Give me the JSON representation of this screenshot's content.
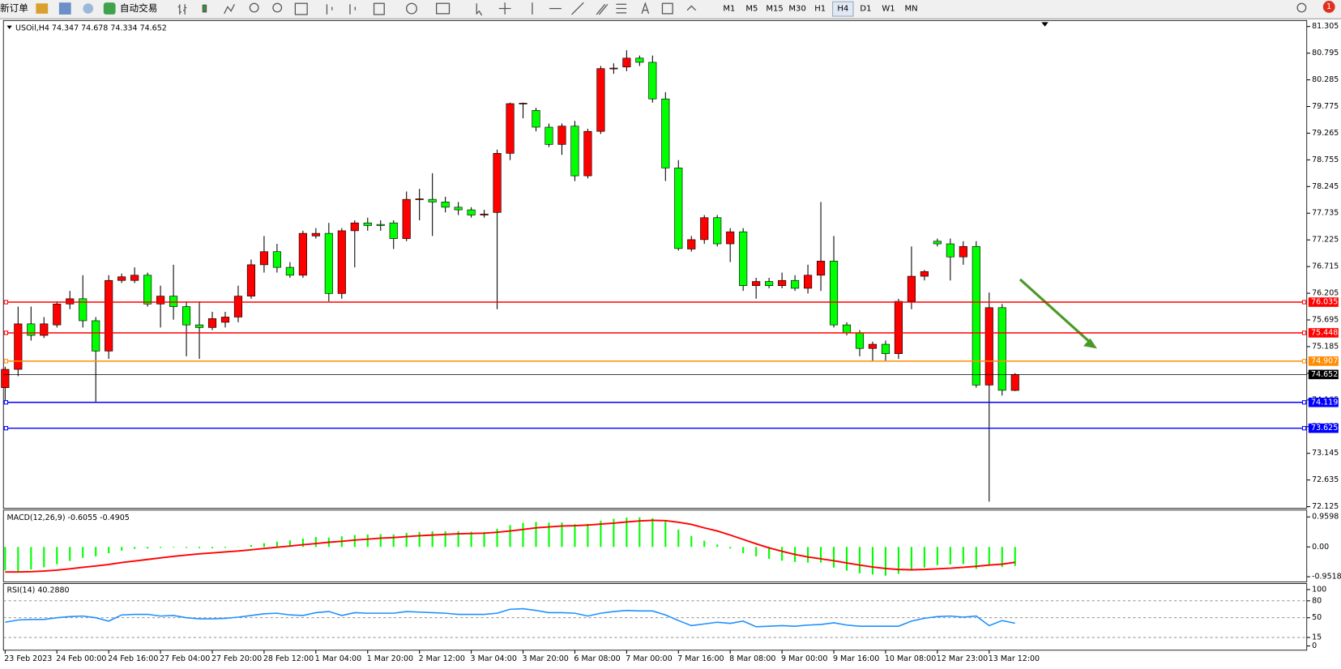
{
  "toolbar": {
    "new_order": "新订单",
    "auto_trading": "自动交易",
    "timeframes": [
      "M1",
      "M5",
      "M15",
      "M30",
      "H1",
      "H4",
      "D1",
      "W1",
      "MN"
    ],
    "badge": "1"
  },
  "chart_data": [
    {
      "type": "candlestick",
      "title": "USOil,H4 74.347 74.678 74.334 74.652",
      "categories": [
        "23 Feb 2023",
        null,
        null,
        null,
        "24 Feb 00:00",
        null,
        null,
        null,
        "24 Feb 16:00",
        null,
        null,
        null,
        "27 Feb 04:00",
        null,
        null,
        null,
        "27 Feb 20:00",
        null,
        null,
        null,
        "28 Feb 12:00",
        null,
        null,
        null,
        "1 Mar 04:00",
        null,
        null,
        null,
        "1 Mar 20:00",
        null,
        null,
        null,
        "2 Mar 12:00",
        null,
        null,
        null,
        "3 Mar 04:00",
        null,
        null,
        null,
        "3 Mar 20:00",
        null,
        null,
        null,
        "6 Mar 08:00",
        null,
        null,
        null,
        "7 Mar 00:00",
        null,
        null,
        null,
        "7 Mar 16:00",
        null,
        null,
        null,
        "8 Mar 08:00",
        null,
        null,
        null,
        "9 Mar 00:00",
        null,
        null,
        null,
        "9 Mar 16:00",
        null,
        null,
        null,
        "10 Mar 08:00",
        null,
        null,
        null,
        "12 Mar 23:00",
        null,
        null,
        null,
        "13 Mar 12:00",
        null,
        null
      ],
      "open": [
        74.4,
        74.75,
        75.62,
        75.4,
        75.6,
        76.0,
        76.1,
        75.68,
        75.1,
        76.45,
        76.45,
        76.55,
        76.0,
        76.15,
        75.95,
        75.6,
        75.55,
        75.65,
        75.75,
        76.15,
        76.75,
        77.0,
        76.7,
        76.55,
        77.3,
        77.35,
        76.2,
        77.4,
        77.55,
        77.52,
        77.55,
        77.25,
        78.0,
        78.0,
        77.95,
        77.85,
        77.8,
        77.7,
        77.75,
        78.88,
        79.83,
        79.7,
        79.38,
        79.05,
        79.4,
        78.45,
        79.3,
        80.5,
        80.53,
        80.7,
        80.62,
        79.92,
        78.6,
        77.05,
        77.23,
        77.65,
        77.15,
        77.38,
        76.35,
        76.43,
        76.35,
        76.45,
        76.3,
        76.55,
        76.82,
        75.6,
        75.45,
        75.15,
        75.23,
        75.05,
        76.05,
        76.53,
        77.2,
        77.15,
        76.9,
        77.1,
        74.45,
        75.93,
        74.347
      ],
      "high": [
        74.8,
        75.95,
        75.95,
        75.75,
        76.05,
        76.25,
        76.55,
        75.75,
        76.55,
        76.58,
        76.7,
        76.6,
        76.35,
        76.75,
        76.05,
        76.05,
        75.85,
        75.85,
        76.35,
        76.85,
        77.3,
        77.15,
        76.8,
        77.4,
        77.45,
        77.55,
        77.45,
        77.6,
        77.65,
        77.6,
        77.6,
        78.15,
        78.2,
        78.5,
        78.05,
        77.95,
        77.85,
        77.8,
        78.95,
        79.85,
        79.85,
        79.75,
        79.45,
        79.45,
        79.5,
        79.35,
        80.55,
        80.6,
        80.85,
        80.75,
        80.75,
        80.05,
        78.75,
        77.3,
        77.7,
        77.7,
        77.45,
        77.45,
        76.5,
        76.5,
        76.6,
        76.55,
        76.75,
        77.95,
        77.3,
        75.65,
        75.5,
        75.28,
        75.3,
        76.1,
        77.1,
        76.65,
        77.25,
        77.25,
        77.2,
        77.2,
        76.22,
        76.0,
        74.678
      ],
      "low": [
        74.1,
        74.62,
        75.3,
        75.35,
        75.55,
        75.9,
        75.55,
        74.12,
        74.95,
        76.4,
        76.4,
        75.95,
        75.55,
        75.7,
        75.0,
        74.95,
        75.5,
        75.55,
        75.65,
        76.1,
        76.6,
        76.6,
        76.5,
        76.5,
        77.25,
        76.05,
        76.1,
        76.7,
        77.4,
        77.4,
        77.05,
        77.2,
        77.6,
        77.3,
        77.75,
        77.7,
        77.65,
        77.65,
        75.9,
        78.75,
        79.55,
        79.3,
        79.0,
        78.85,
        78.35,
        78.4,
        79.25,
        80.4,
        80.45,
        80.55,
        79.85,
        78.35,
        77.02,
        77.0,
        77.15,
        77.1,
        76.8,
        76.25,
        76.1,
        76.3,
        76.3,
        76.25,
        76.2,
        76.25,
        75.55,
        75.4,
        75.0,
        74.9,
        74.9,
        74.95,
        75.9,
        76.45,
        77.1,
        76.45,
        76.75,
        74.4,
        72.22,
        74.25,
        74.334
      ],
      "close": [
        74.75,
        75.62,
        75.4,
        75.62,
        76.0,
        76.1,
        75.68,
        75.1,
        76.45,
        76.52,
        76.55,
        76.0,
        76.15,
        75.95,
        75.6,
        75.55,
        75.72,
        75.75,
        76.15,
        76.75,
        77.0,
        76.7,
        76.55,
        77.35,
        77.35,
        76.2,
        77.4,
        77.55,
        77.5,
        77.5,
        77.25,
        78.0,
        78.01,
        77.95,
        77.85,
        77.8,
        77.7,
        77.72,
        78.88,
        79.83,
        79.84,
        79.38,
        79.05,
        79.4,
        78.45,
        79.3,
        80.5,
        80.51,
        80.7,
        80.62,
        79.92,
        78.6,
        77.06,
        77.23,
        77.65,
        77.15,
        77.38,
        76.35,
        76.43,
        76.35,
        76.45,
        76.3,
        76.55,
        76.82,
        75.6,
        75.45,
        75.15,
        75.23,
        75.05,
        76.05,
        76.53,
        76.62,
        77.15,
        76.9,
        77.1,
        74.45,
        75.93,
        74.35,
        74.652
      ],
      "up_color": "#ff0000",
      "down_color": "#00ff00",
      "ylim": [
        72.125,
        81.305
      ],
      "yticks": [
        81.305,
        80.795,
        80.285,
        79.775,
        79.265,
        78.755,
        78.245,
        77.735,
        77.225,
        76.715,
        76.205,
        75.695,
        75.185,
        74.675,
        74.165,
        73.655,
        73.145,
        72.635,
        72.125
      ],
      "hlines": [
        {
          "value": 76.035,
          "color": "#ff0000"
        },
        {
          "value": 75.448,
          "color": "#ff0000"
        },
        {
          "value": 74.907,
          "color": "#ff8c00"
        },
        {
          "value": 74.652,
          "color": "#000000"
        },
        {
          "value": 74.119,
          "color": "#0000ff"
        },
        {
          "value": 73.625,
          "color": "#0000ff"
        }
      ]
    },
    {
      "type": "macd",
      "title": "MACD(12,26,9) -0.6055 -0.4905",
      "histogram": {
        "color": "#00ff00",
        "values": [
          -0.75,
          -0.78,
          -0.72,
          -0.65,
          -0.55,
          -0.45,
          -0.35,
          -0.3,
          -0.2,
          -0.12,
          -0.06,
          -0.05,
          -0.03,
          -0.02,
          -0.03,
          -0.04,
          -0.04,
          -0.03,
          0.01,
          0.06,
          0.12,
          0.17,
          0.21,
          0.27,
          0.32,
          0.3,
          0.34,
          0.38,
          0.4,
          0.41,
          0.4,
          0.45,
          0.48,
          0.5,
          0.5,
          0.5,
          0.49,
          0.48,
          0.58,
          0.7,
          0.77,
          0.8,
          0.78,
          0.78,
          0.73,
          0.74,
          0.84,
          0.9,
          0.94,
          0.95,
          0.92,
          0.82,
          0.55,
          0.35,
          0.2,
          0.08,
          -0.05,
          -0.2,
          -0.3,
          -0.38,
          -0.44,
          -0.48,
          -0.5,
          -0.5,
          -0.66,
          -0.76,
          -0.84,
          -0.88,
          -0.92,
          -0.86,
          -0.76,
          -0.66,
          -0.58,
          -0.56,
          -0.55,
          -0.7,
          -0.6,
          -0.64,
          -0.6055
        ]
      },
      "signal": {
        "color": "#ff0000",
        "values": [
          -0.8,
          -0.8,
          -0.79,
          -0.77,
          -0.74,
          -0.7,
          -0.65,
          -0.61,
          -0.56,
          -0.5,
          -0.45,
          -0.4,
          -0.35,
          -0.3,
          -0.26,
          -0.22,
          -0.19,
          -0.16,
          -0.13,
          -0.09,
          -0.05,
          -0.01,
          0.03,
          0.07,
          0.11,
          0.15,
          0.18,
          0.22,
          0.25,
          0.28,
          0.3,
          0.33,
          0.36,
          0.38,
          0.4,
          0.42,
          0.43,
          0.44,
          0.47,
          0.51,
          0.56,
          0.61,
          0.64,
          0.67,
          0.68,
          0.7,
          0.73,
          0.76,
          0.8,
          0.83,
          0.85,
          0.84,
          0.79,
          0.72,
          0.61,
          0.51,
          0.38,
          0.24,
          0.1,
          -0.03,
          -0.14,
          -0.24,
          -0.32,
          -0.38,
          -0.44,
          -0.51,
          -0.58,
          -0.64,
          -0.69,
          -0.72,
          -0.73,
          -0.72,
          -0.7,
          -0.68,
          -0.65,
          -0.62,
          -0.58,
          -0.55,
          -0.4905
        ]
      },
      "ylim": [
        -0.9518,
        0.9598
      ],
      "yticks": [
        0.9598,
        {
          "value": 0,
          "label": "0.00"
        },
        -0.9518
      ]
    },
    {
      "type": "rsi",
      "title": "RSI(14) 40.2880",
      "color": "#1e90ff",
      "values": [
        42,
        46,
        47,
        47,
        50,
        52,
        53,
        50,
        44,
        55,
        56,
        56,
        53,
        54,
        50,
        48,
        48,
        49,
        51,
        54,
        57,
        58,
        55,
        54,
        59,
        61,
        54,
        59,
        58,
        58,
        58,
        61,
        60,
        59,
        58,
        56,
        56,
        56,
        58,
        65,
        66,
        63,
        59,
        59,
        58,
        53,
        58,
        61,
        63,
        62,
        62,
        55,
        45,
        36,
        39,
        42,
        40,
        44,
        34,
        35,
        36,
        35,
        37,
        38,
        41,
        37,
        35,
        35,
        35,
        35,
        44,
        49,
        52,
        53,
        51,
        53,
        36,
        45,
        40.288
      ],
      "ylim": [
        0,
        100
      ],
      "yticks": [
        100,
        80,
        50,
        15,
        0
      ]
    }
  ]
}
